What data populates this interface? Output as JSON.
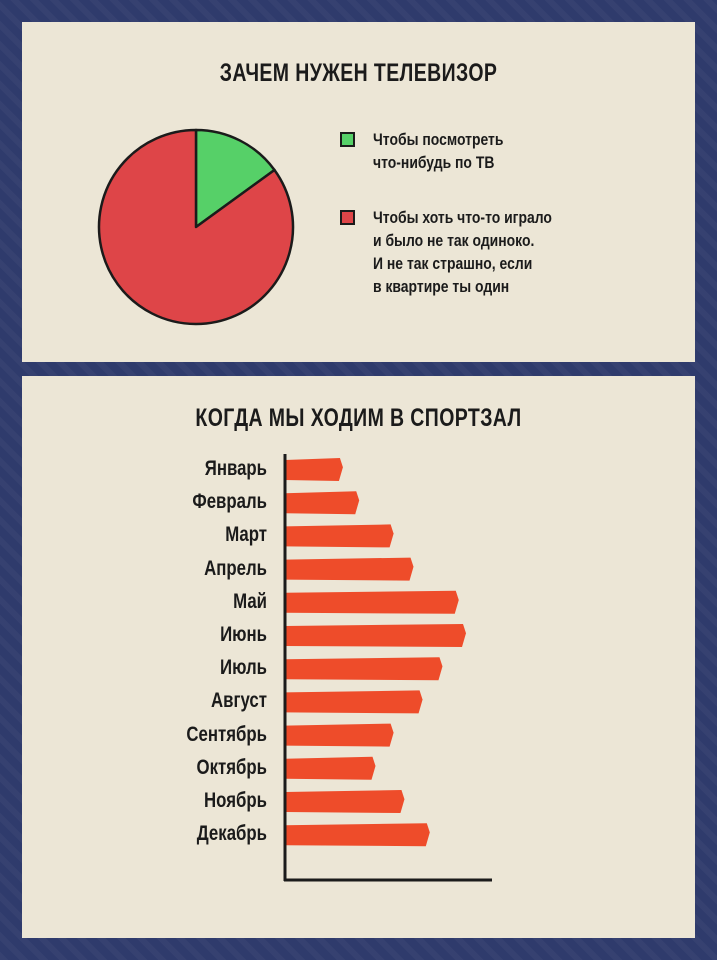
{
  "chart_data": [
    {
      "type": "pie",
      "title": "ЗАЧЕМ НУЖЕН ТЕЛЕВИЗОР",
      "slices": [
        {
          "label": "Чтобы посмотреть\nчто-нибудь по ТВ",
          "value": 15,
          "color": "#56d068"
        },
        {
          "label": "Чтобы хоть что-то играло\nи было не так одиноко.\nИ не так страшно, если\nв квартире ты один",
          "value": 85,
          "color": "#de4548"
        }
      ],
      "legend": "right"
    },
    {
      "type": "bar",
      "orientation": "horizontal",
      "title": "КОГДА МЫ ХОДИМ В СПОРТЗАЛ",
      "categories": [
        "Январь",
        "Февраль",
        "Март",
        "Апрель",
        "Май",
        "Июнь",
        "Июль",
        "Август",
        "Сентябрь",
        "Октябрь",
        "Ноябрь",
        "Декабрь"
      ],
      "values": [
        32,
        41,
        60,
        71,
        96,
        100,
        87,
        76,
        60,
        50,
        66,
        80
      ],
      "xlim": [
        0,
        100
      ],
      "color": "#ee4c2a",
      "grid": false
    }
  ]
}
